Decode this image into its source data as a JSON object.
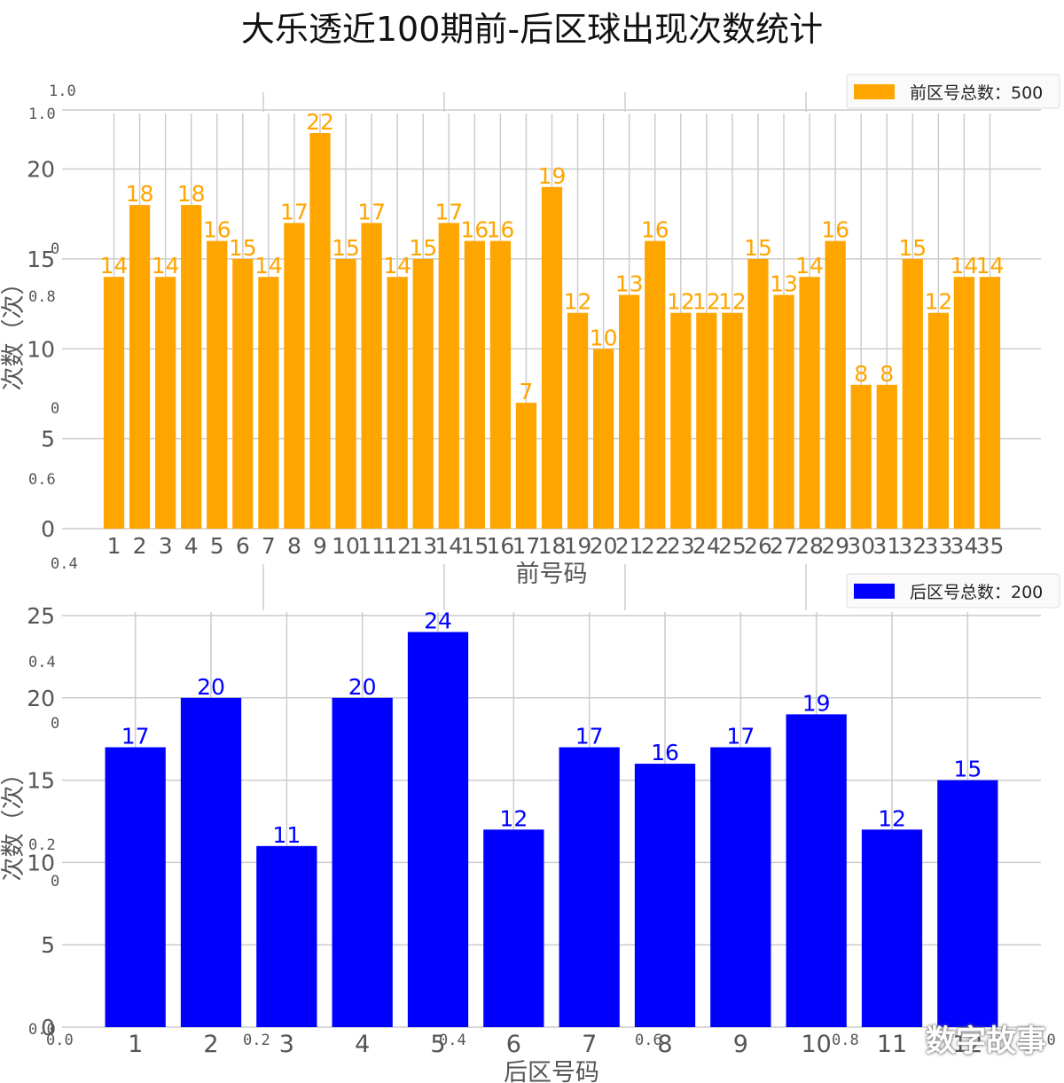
{
  "title": "大乐透近100期前-后区球出现次数统计",
  "watermark": "数字故事",
  "colors": {
    "front": "#FFA500",
    "back": "#0000FF",
    "grid": "#cccccc",
    "text": "#555555",
    "background": "#ffffff"
  },
  "stray_ticks": {
    "y_left": [
      "1.0",
      "1.0",
      "0",
      "0.8",
      "0",
      "0.6",
      "0.4",
      "0.4",
      "0",
      "0.2",
      "0",
      "0.0"
    ],
    "x_bottom": [
      "0.0",
      "0.2",
      "0.4",
      "0.6",
      "0.8",
      "1.0"
    ]
  },
  "chart_data": [
    {
      "type": "bar",
      "categories": [
        "1",
        "2",
        "3",
        "4",
        "5",
        "6",
        "7",
        "8",
        "9",
        "10",
        "11",
        "12",
        "13",
        "14",
        "15",
        "16",
        "17",
        "18",
        "19",
        "20",
        "21",
        "22",
        "23",
        "24",
        "25",
        "26",
        "27",
        "28",
        "29",
        "30",
        "31",
        "32",
        "33",
        "34",
        "35"
      ],
      "series": [
        {
          "name": "前区号总数：500",
          "values": [
            14,
            18,
            14,
            18,
            16,
            15,
            14,
            17,
            22,
            15,
            17,
            14,
            15,
            17,
            16,
            16,
            7,
            19,
            12,
            10,
            13,
            16,
            12,
            12,
            12,
            15,
            13,
            14,
            16,
            8,
            8,
            15,
            12,
            14,
            14
          ]
        }
      ],
      "xlabel": "前号码",
      "ylabel": "次数（次）",
      "ylim": [
        0,
        22
      ],
      "yticks": [
        0,
        5,
        10,
        15,
        20
      ],
      "grid": true,
      "legend": "top-right"
    },
    {
      "type": "bar",
      "categories": [
        "1",
        "2",
        "3",
        "4",
        "5",
        "6",
        "7",
        "8",
        "9",
        "10",
        "11",
        "12"
      ],
      "series": [
        {
          "name": "后区号总数：200",
          "values": [
            17,
            20,
            11,
            20,
            24,
            12,
            17,
            16,
            17,
            19,
            12,
            15
          ]
        }
      ],
      "xlabel": "后区号码",
      "ylabel": "次数（次）",
      "ylim": [
        0,
        25
      ],
      "yticks": [
        0,
        5,
        10,
        15,
        20,
        25
      ],
      "grid": true,
      "legend": "top-right"
    }
  ]
}
